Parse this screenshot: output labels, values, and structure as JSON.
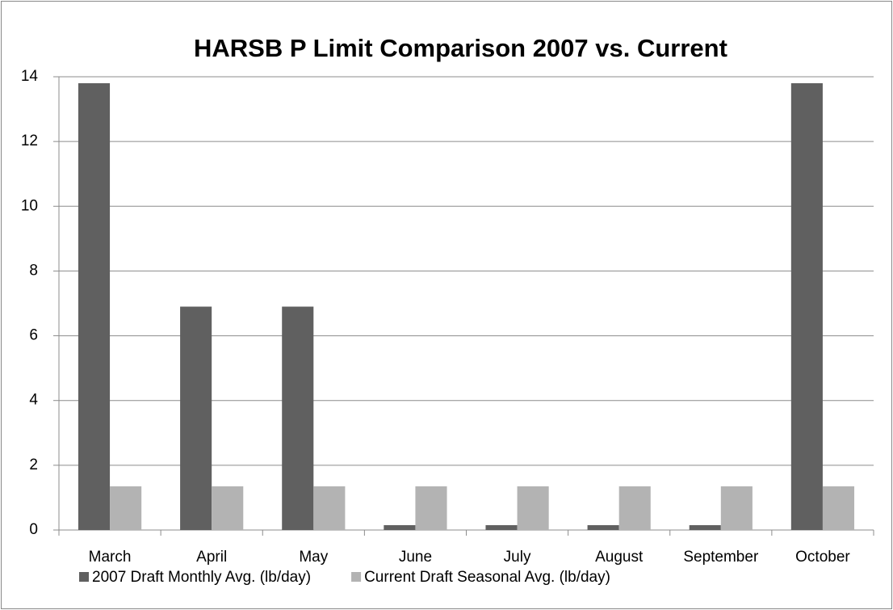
{
  "chart_data": {
    "type": "bar",
    "title": "HARSB P Limit Comparison 2007 vs. Current",
    "categories": [
      "March",
      "April",
      "May",
      "June",
      "July",
      "August",
      "September",
      "October"
    ],
    "series": [
      {
        "name": "2007 Draft Monthly Avg. (lb/day)",
        "color": "#606060",
        "values": [
          13.8,
          6.9,
          6.9,
          0.15,
          0.15,
          0.15,
          0.15,
          13.8
        ]
      },
      {
        "name": "Current Draft Seasonal Avg. (lb/day)",
        "color": "#b3b3b3",
        "values": [
          1.35,
          1.35,
          1.35,
          1.35,
          1.35,
          1.35,
          1.35,
          1.35
        ]
      }
    ],
    "ylim": [
      0,
      14
    ],
    "yticks": [
      0,
      2,
      4,
      6,
      8,
      10,
      12,
      14
    ],
    "grid": true,
    "legend": "bottom"
  }
}
